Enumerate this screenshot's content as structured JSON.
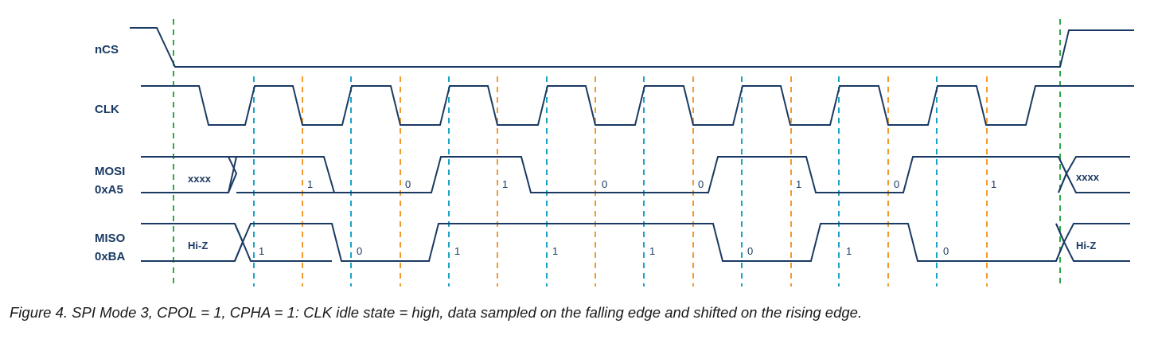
{
  "signals": {
    "ncs": "nCS",
    "clk": "CLK",
    "mosi": "MOSI",
    "mosi_value": "0xA5",
    "miso": "MISO",
    "miso_value": "0xBA"
  },
  "mosi_idle": "xxxx",
  "miso_idle": "Hi-Z",
  "mosi_bits": [
    "1",
    "0",
    "1",
    "0",
    "0",
    "1",
    "0",
    "1"
  ],
  "miso_bits": [
    "1",
    "0",
    "1",
    "1",
    "1",
    "0",
    "1",
    "0"
  ],
  "caption": "Figure 4. SPI Mode 3, CPOL = 1, CPHA = 1: CLK idle state = high, data sampled on the falling edge and shifted on the rising edge.",
  "colors": {
    "trace": "#1b3a63",
    "chip_select_guide": "#2ea84a",
    "sample_guide": "#1ba3c6",
    "shift_guide": "#f39a2d"
  }
}
